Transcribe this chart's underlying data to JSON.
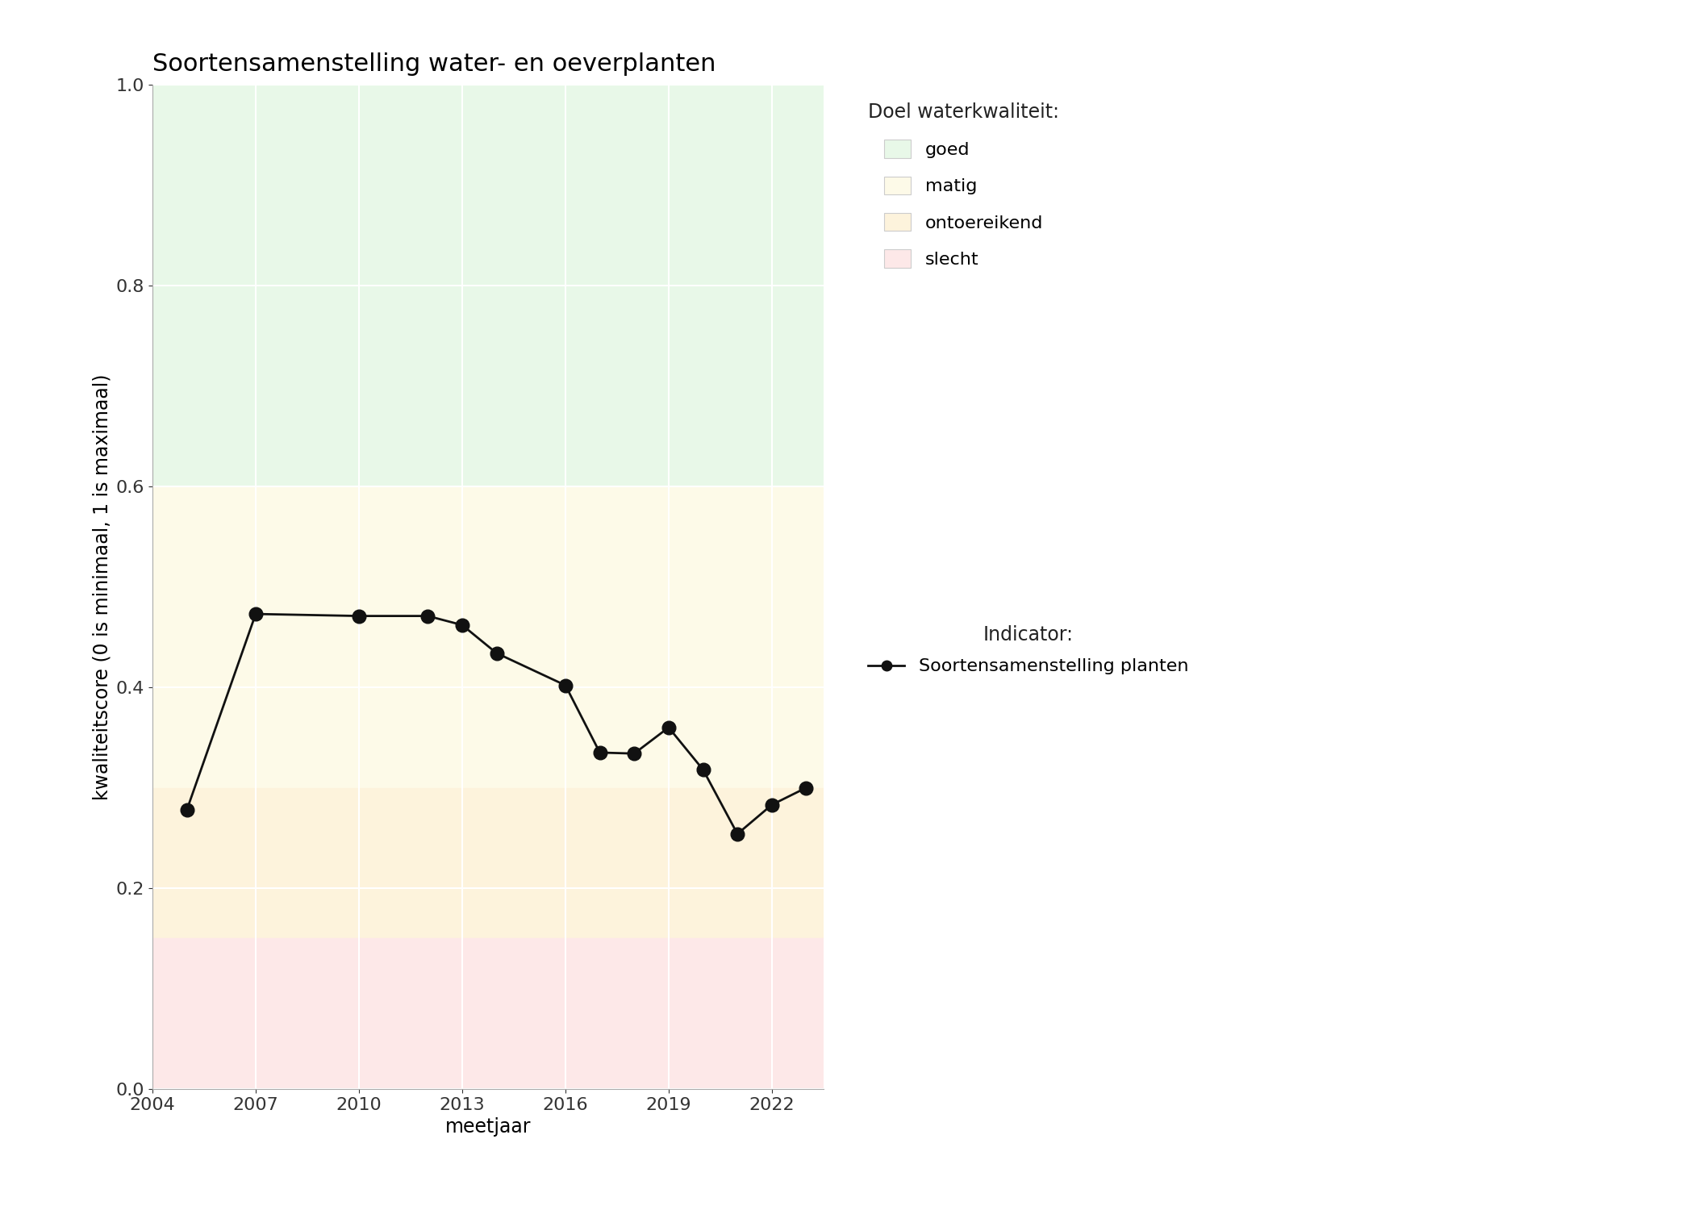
{
  "title": "Soortensamenstelling water- en oeverplanten",
  "xlabel": "meetjaar",
  "ylabel": "kwaliteitscore (0 is minimaal, 1 is maximaal)",
  "xlim": [
    2004,
    2023.5
  ],
  "ylim": [
    0.0,
    1.0
  ],
  "xticks": [
    2004,
    2007,
    2010,
    2013,
    2016,
    2019,
    2022
  ],
  "yticks": [
    0.0,
    0.2,
    0.4,
    0.6,
    0.8,
    1.0
  ],
  "years": [
    2005,
    2007,
    2010,
    2012,
    2013,
    2014,
    2016,
    2017,
    2018,
    2019,
    2020,
    2021,
    2022,
    2023
  ],
  "values": [
    0.278,
    0.473,
    0.471,
    0.471,
    0.462,
    0.434,
    0.402,
    0.335,
    0.334,
    0.36,
    0.318,
    0.254,
    0.283,
    0.3
  ],
  "bg_colors": {
    "goed": "#e8f8e8",
    "matig": "#fdfae8",
    "ontoereikend": "#fdf3dc",
    "slecht": "#fde8e8"
  },
  "bg_thresholds": {
    "goed_min": 0.6,
    "goed_max": 1.0,
    "matig_min": 0.3,
    "matig_max": 0.6,
    "ontoereikend_min": 0.15,
    "ontoereikend_max": 0.3,
    "slecht_min": 0.0,
    "slecht_max": 0.15
  },
  "legend_title_doel": "Doel waterkwaliteit:",
  "legend_title_indicator": "Indicator:",
  "legend_labels": [
    "goed",
    "matig",
    "ontoereikend",
    "slecht"
  ],
  "indicator_label": "Soortensamenstelling planten",
  "line_color": "#111111",
  "marker_size": 12,
  "line_width": 2.0,
  "title_fontsize": 22,
  "label_fontsize": 17,
  "tick_fontsize": 16,
  "legend_fontsize": 16,
  "legend_title_fontsize": 17
}
